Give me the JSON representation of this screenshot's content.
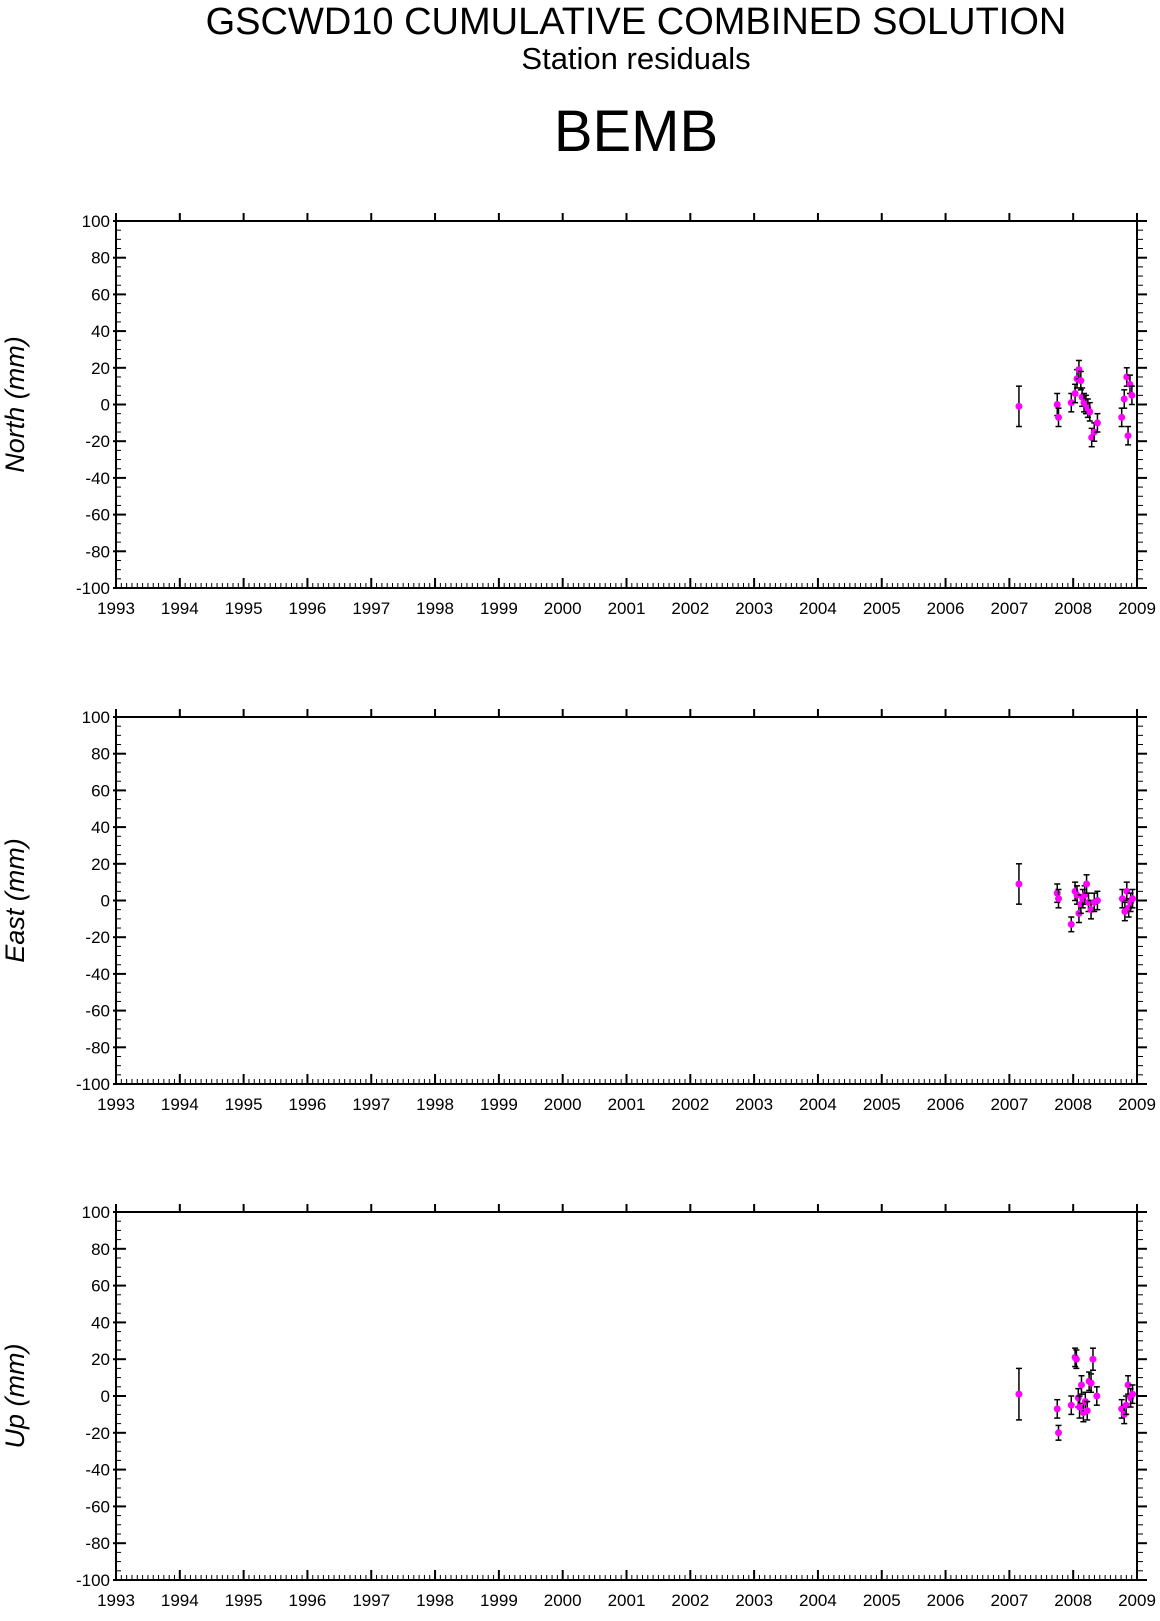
{
  "header": {
    "title": "GSCWD10 CUMULATIVE COMBINED SOLUTION",
    "subtitle": "Station residuals",
    "station": "BEMB"
  },
  "colors": {
    "marker": "#ff00ff",
    "errorbar": "#000000",
    "axis": "#000000"
  },
  "chart_data": [
    {
      "type": "scatter",
      "ylabel": "North (mm)",
      "xlim": [
        1993,
        2009
      ],
      "ylim": [
        -100,
        100
      ],
      "xticks": [
        "1993",
        "1994",
        "1995",
        "1996",
        "1997",
        "1998",
        "1999",
        "2000",
        "2001",
        "2002",
        "2003",
        "2004",
        "2005",
        "2006",
        "2007",
        "2008",
        "2009"
      ],
      "yticks": [
        "100",
        "80",
        "60",
        "40",
        "20",
        "0",
        "-20",
        "-40",
        "-60",
        "-80",
        "-100"
      ],
      "grid": false,
      "points": [
        {
          "x": 2007.15,
          "y": -1,
          "err": 11
        },
        {
          "x": 2007.75,
          "y": 0,
          "err": 6
        },
        {
          "x": 2007.77,
          "y": -7,
          "err": 5
        },
        {
          "x": 2007.97,
          "y": 1,
          "err": 5
        },
        {
          "x": 2008.03,
          "y": 6,
          "err": 5
        },
        {
          "x": 2008.06,
          "y": 14,
          "err": 5
        },
        {
          "x": 2008.09,
          "y": 19,
          "err": 5
        },
        {
          "x": 2008.12,
          "y": 13,
          "err": 5
        },
        {
          "x": 2008.14,
          "y": 4,
          "err": 5
        },
        {
          "x": 2008.17,
          "y": 1,
          "err": 5
        },
        {
          "x": 2008.2,
          "y": 0,
          "err": 5
        },
        {
          "x": 2008.23,
          "y": -2,
          "err": 5
        },
        {
          "x": 2008.26,
          "y": -4,
          "err": 5
        },
        {
          "x": 2008.29,
          "y": -18,
          "err": 5
        },
        {
          "x": 2008.33,
          "y": -15,
          "err": 5
        },
        {
          "x": 2008.38,
          "y": -10,
          "err": 5
        },
        {
          "x": 2008.76,
          "y": -7,
          "err": 5
        },
        {
          "x": 2008.8,
          "y": 3,
          "err": 5
        },
        {
          "x": 2008.84,
          "y": 15,
          "err": 5
        },
        {
          "x": 2008.86,
          "y": -17,
          "err": 5
        },
        {
          "x": 2008.89,
          "y": 11,
          "err": 5
        },
        {
          "x": 2008.92,
          "y": 5,
          "err": 5
        }
      ]
    },
    {
      "type": "scatter",
      "ylabel": "East (mm)",
      "xlim": [
        1993,
        2009
      ],
      "ylim": [
        -100,
        100
      ],
      "xticks": [
        "1993",
        "1994",
        "1995",
        "1996",
        "1997",
        "1998",
        "1999",
        "2000",
        "2001",
        "2002",
        "2003",
        "2004",
        "2005",
        "2006",
        "2007",
        "2008",
        "2009"
      ],
      "yticks": [
        "100",
        "80",
        "60",
        "40",
        "20",
        "0",
        "-20",
        "-40",
        "-60",
        "-80",
        "-100"
      ],
      "grid": false,
      "points": [
        {
          "x": 2007.15,
          "y": 9,
          "err": 11
        },
        {
          "x": 2007.75,
          "y": 4,
          "err": 5
        },
        {
          "x": 2007.77,
          "y": 1,
          "err": 5
        },
        {
          "x": 2007.97,
          "y": -13,
          "err": 4
        },
        {
          "x": 2008.03,
          "y": 5,
          "err": 5
        },
        {
          "x": 2008.06,
          "y": 3,
          "err": 5
        },
        {
          "x": 2008.09,
          "y": -7,
          "err": 5
        },
        {
          "x": 2008.12,
          "y": -2,
          "err": 5
        },
        {
          "x": 2008.15,
          "y": 1,
          "err": 5
        },
        {
          "x": 2008.18,
          "y": 3,
          "err": 5
        },
        {
          "x": 2008.21,
          "y": 9,
          "err": 5
        },
        {
          "x": 2008.24,
          "y": -1,
          "err": 5
        },
        {
          "x": 2008.28,
          "y": -5,
          "err": 5
        },
        {
          "x": 2008.33,
          "y": -1,
          "err": 5
        },
        {
          "x": 2008.38,
          "y": 0,
          "err": 5
        },
        {
          "x": 2008.77,
          "y": 1,
          "err": 5
        },
        {
          "x": 2008.81,
          "y": -6,
          "err": 5
        },
        {
          "x": 2008.84,
          "y": 5,
          "err": 5
        },
        {
          "x": 2008.87,
          "y": -4,
          "err": 5
        },
        {
          "x": 2008.9,
          "y": -1,
          "err": 5
        },
        {
          "x": 2008.93,
          "y": 1,
          "err": 5
        }
      ]
    },
    {
      "type": "scatter",
      "ylabel": "Up (mm)",
      "xlim": [
        1993,
        2009
      ],
      "ylim": [
        -100,
        100
      ],
      "xticks": [
        "1993",
        "1994",
        "1995",
        "1996",
        "1997",
        "1998",
        "1999",
        "2000",
        "2001",
        "2002",
        "2003",
        "2004",
        "2005",
        "2006",
        "2007",
        "2008",
        "2009"
      ],
      "yticks": [
        "100",
        "80",
        "60",
        "40",
        "20",
        "0",
        "-20",
        "-40",
        "-60",
        "-80",
        "-100"
      ],
      "grid": false,
      "points": [
        {
          "x": 2007.15,
          "y": 1,
          "err": 14
        },
        {
          "x": 2007.75,
          "y": -7,
          "err": 5
        },
        {
          "x": 2007.77,
          "y": -20,
          "err": 4
        },
        {
          "x": 2007.97,
          "y": -5,
          "err": 5
        },
        {
          "x": 2008.03,
          "y": 21,
          "err": 5
        },
        {
          "x": 2008.05,
          "y": 20,
          "err": 5
        },
        {
          "x": 2008.08,
          "y": -1,
          "err": 5
        },
        {
          "x": 2008.1,
          "y": -6,
          "err": 6
        },
        {
          "x": 2008.13,
          "y": 6,
          "err": 5
        },
        {
          "x": 2008.16,
          "y": -9,
          "err": 5
        },
        {
          "x": 2008.19,
          "y": -3,
          "err": 5
        },
        {
          "x": 2008.22,
          "y": -8,
          "err": 5
        },
        {
          "x": 2008.25,
          "y": 8,
          "err": 5
        },
        {
          "x": 2008.28,
          "y": 7,
          "err": 5
        },
        {
          "x": 2008.31,
          "y": 20,
          "err": 6
        },
        {
          "x": 2008.37,
          "y": 0,
          "err": 5
        },
        {
          "x": 2008.76,
          "y": -7,
          "err": 5
        },
        {
          "x": 2008.8,
          "y": -10,
          "err": 5
        },
        {
          "x": 2008.83,
          "y": -5,
          "err": 5
        },
        {
          "x": 2008.86,
          "y": 6,
          "err": 5
        },
        {
          "x": 2008.9,
          "y": -1,
          "err": 5
        },
        {
          "x": 2008.93,
          "y": 1,
          "err": 5
        }
      ]
    }
  ]
}
